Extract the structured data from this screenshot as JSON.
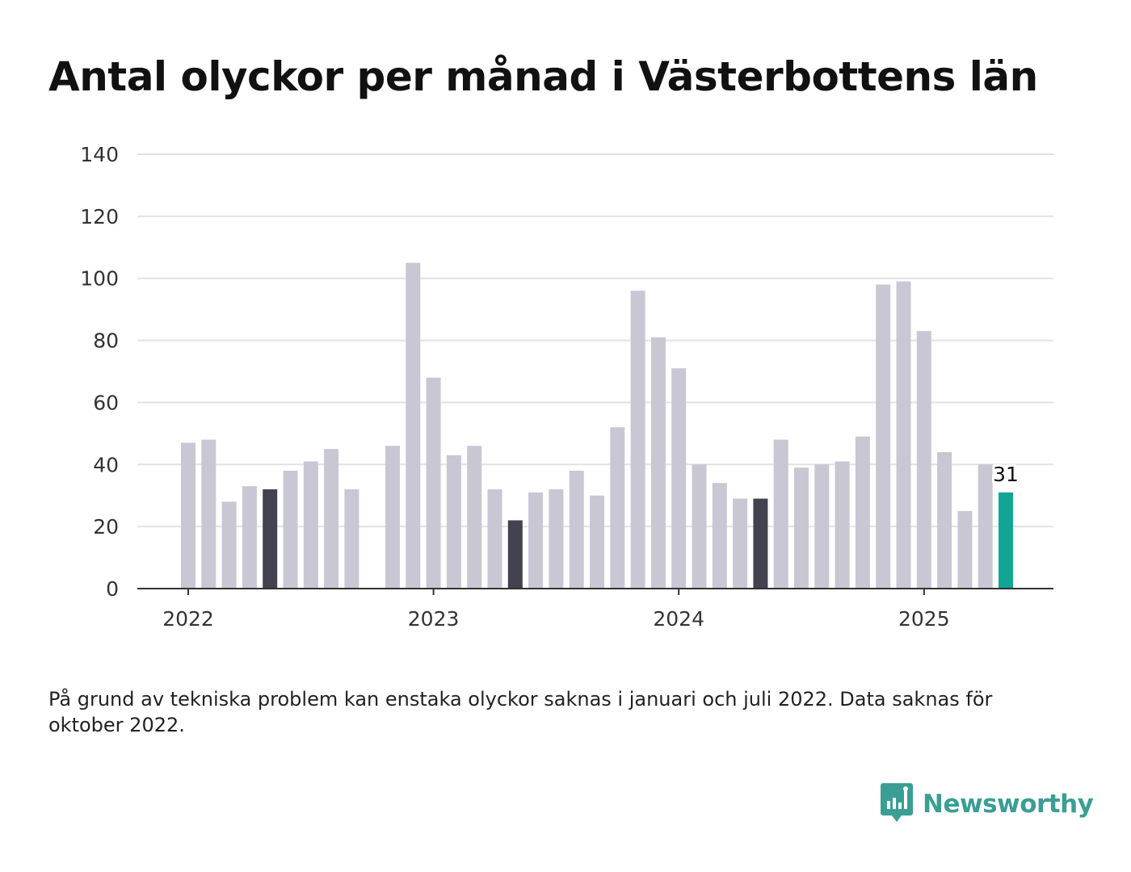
{
  "title": "Antal olyckor per månad i Västerbottens län",
  "note": "På grund av tekniska problem kan enstaka olyckor saknas i januari och juli 2022. Data saknas för oktober 2022.",
  "brand": {
    "name": "Newsworthy",
    "icon": "newsworthy-logo-icon",
    "color": "#3a9e94"
  },
  "colors": {
    "bar_default": "#c8c7d3",
    "bar_highlight": "#43424f",
    "bar_latest": "#12a596",
    "grid": "#e2e2e2",
    "axis": "#333333"
  },
  "chart_data": {
    "type": "bar",
    "title": "Antal olyckor per månad i Västerbottens län",
    "xlabel": "",
    "ylabel": "",
    "ylim": [
      0,
      140
    ],
    "yticks": [
      "0",
      "20",
      "40",
      "60",
      "80",
      "100",
      "120",
      "140"
    ],
    "xticks": [
      "2022",
      "2023",
      "2024",
      "2025"
    ],
    "grid": true,
    "legend": "none",
    "highlight_month": "May",
    "latest_label": "31",
    "categories": [
      "2022-01",
      "2022-02",
      "2022-03",
      "2022-04",
      "2022-05",
      "2022-06",
      "2022-07",
      "2022-08",
      "2022-09",
      "2022-10",
      "2022-11",
      "2022-12",
      "2023-01",
      "2023-02",
      "2023-03",
      "2023-04",
      "2023-05",
      "2023-06",
      "2023-07",
      "2023-08",
      "2023-09",
      "2023-10",
      "2023-11",
      "2023-12",
      "2024-01",
      "2024-02",
      "2024-03",
      "2024-04",
      "2024-05",
      "2024-06",
      "2024-07",
      "2024-08",
      "2024-09",
      "2024-10",
      "2024-11",
      "2024-12",
      "2025-01",
      "2025-02",
      "2025-03",
      "2025-04",
      "2025-05"
    ],
    "values": [
      47,
      48,
      28,
      33,
      32,
      38,
      41,
      45,
      32,
      null,
      46,
      105,
      68,
      43,
      46,
      32,
      22,
      31,
      32,
      38,
      30,
      52,
      96,
      81,
      71,
      40,
      34,
      29,
      29,
      48,
      39,
      40,
      41,
      49,
      98,
      99,
      83,
      44,
      25,
      40,
      31
    ]
  }
}
